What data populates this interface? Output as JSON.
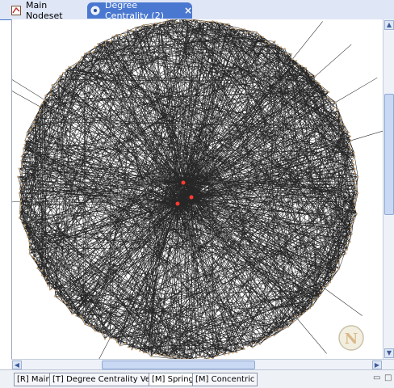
{
  "tabs": {
    "main_label": "Main Nodeset",
    "degree_label": "Degree Centrality (2)",
    "close_glyph": "×"
  },
  "graph": {
    "layout": "circular",
    "edge_color": "#000000",
    "hub_color": "#ff3b2f",
    "node_color": "#c8a070",
    "logo_letter": "N"
  },
  "bottom_tabs": [
    {
      "label": "[R] Main"
    },
    {
      "label": "[T] Degree Centrality Vector"
    },
    {
      "label": "[M] Spring"
    },
    {
      "label": "[M] Concentric"
    }
  ],
  "icons": {
    "minimize": "▭",
    "maximize": "□"
  }
}
